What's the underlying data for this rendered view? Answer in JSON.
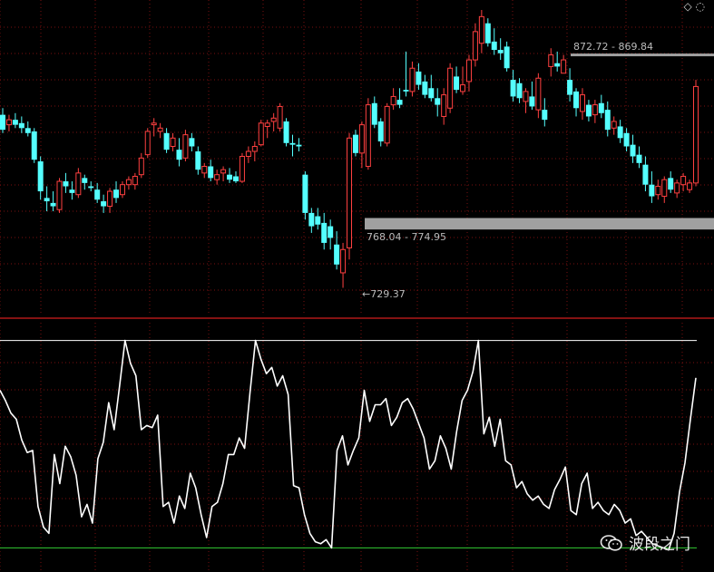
{
  "chart_data": [
    {
      "type": "candlestick",
      "title": "",
      "colors": {
        "up": "#ff4040",
        "down": "#54ffff",
        "background": "#000000",
        "grid": "#7a1010"
      },
      "ylim": [
        718,
        906
      ],
      "annotations": {
        "low_label": "729.37",
        "zone_low_label": "768.04 - 774.95",
        "zone_high_label": "872.72 - 869.84",
        "zone_low": [
          768.04,
          774.95
        ],
        "zone_high": [
          869.84,
          872.72
        ],
        "low_marker": 729.37
      },
      "candles": [
        {
          "o": 837,
          "h": 841,
          "l": 826,
          "c": 828
        },
        {
          "o": 831,
          "h": 837,
          "l": 827,
          "c": 834
        },
        {
          "o": 834,
          "h": 838,
          "l": 829,
          "c": 831
        },
        {
          "o": 832,
          "h": 836,
          "l": 826,
          "c": 829
        },
        {
          "o": 829,
          "h": 833,
          "l": 824,
          "c": 826
        },
        {
          "o": 827,
          "h": 829,
          "l": 808,
          "c": 810
        },
        {
          "o": 809,
          "h": 812,
          "l": 786,
          "c": 791
        },
        {
          "o": 787,
          "h": 794,
          "l": 779,
          "c": 785
        },
        {
          "o": 784,
          "h": 791,
          "l": 779,
          "c": 782
        },
        {
          "o": 780,
          "h": 799,
          "l": 778,
          "c": 797
        },
        {
          "o": 797,
          "h": 802,
          "l": 790,
          "c": 794
        },
        {
          "o": 792,
          "h": 797,
          "l": 786,
          "c": 790
        },
        {
          "o": 789,
          "h": 805,
          "l": 787,
          "c": 802
        },
        {
          "o": 799,
          "h": 801,
          "l": 792,
          "c": 796
        },
        {
          "o": 794,
          "h": 797,
          "l": 791,
          "c": 793
        },
        {
          "o": 792,
          "h": 796,
          "l": 784,
          "c": 786
        },
        {
          "o": 785,
          "h": 789,
          "l": 778,
          "c": 782
        },
        {
          "o": 782,
          "h": 793,
          "l": 778,
          "c": 791
        },
        {
          "o": 792,
          "h": 797,
          "l": 784,
          "c": 787
        },
        {
          "o": 789,
          "h": 797,
          "l": 787,
          "c": 795
        },
        {
          "o": 795,
          "h": 800,
          "l": 792,
          "c": 798
        },
        {
          "o": 795,
          "h": 802,
          "l": 792,
          "c": 800
        },
        {
          "o": 801,
          "h": 814,
          "l": 799,
          "c": 811
        },
        {
          "o": 813,
          "h": 829,
          "l": 811,
          "c": 827
        },
        {
          "o": 831,
          "h": 835,
          "l": 824,
          "c": 832
        },
        {
          "o": 827,
          "h": 832,
          "l": 823,
          "c": 829
        },
        {
          "o": 826,
          "h": 829,
          "l": 814,
          "c": 816
        },
        {
          "o": 818,
          "h": 826,
          "l": 815,
          "c": 823
        },
        {
          "o": 816,
          "h": 823,
          "l": 806,
          "c": 810
        },
        {
          "o": 811,
          "h": 828,
          "l": 809,
          "c": 825
        },
        {
          "o": 823,
          "h": 826,
          "l": 815,
          "c": 818
        },
        {
          "o": 815,
          "h": 818,
          "l": 801,
          "c": 804
        },
        {
          "o": 802,
          "h": 808,
          "l": 799,
          "c": 806
        },
        {
          "o": 806,
          "h": 810,
          "l": 797,
          "c": 799
        },
        {
          "o": 798,
          "h": 804,
          "l": 795,
          "c": 801
        },
        {
          "o": 802,
          "h": 806,
          "l": 797,
          "c": 804
        },
        {
          "o": 801,
          "h": 805,
          "l": 796,
          "c": 798
        },
        {
          "o": 800,
          "h": 803,
          "l": 796,
          "c": 797
        },
        {
          "o": 797,
          "h": 814,
          "l": 796,
          "c": 812
        },
        {
          "o": 812,
          "h": 818,
          "l": 808,
          "c": 815
        },
        {
          "o": 815,
          "h": 821,
          "l": 809,
          "c": 818
        },
        {
          "o": 819,
          "h": 834,
          "l": 818,
          "c": 832
        },
        {
          "o": 830,
          "h": 834,
          "l": 823,
          "c": 832
        },
        {
          "o": 833,
          "h": 838,
          "l": 827,
          "c": 835
        },
        {
          "o": 829,
          "h": 844,
          "l": 827,
          "c": 842
        },
        {
          "o": 833,
          "h": 835,
          "l": 818,
          "c": 820
        },
        {
          "o": 820,
          "h": 825,
          "l": 812,
          "c": 819
        },
        {
          "o": 819,
          "h": 823,
          "l": 815,
          "c": 818
        },
        {
          "o": 801,
          "h": 803,
          "l": 774,
          "c": 778
        },
        {
          "o": 778,
          "h": 781,
          "l": 766,
          "c": 770
        },
        {
          "o": 776,
          "h": 781,
          "l": 768,
          "c": 771
        },
        {
          "o": 772,
          "h": 778,
          "l": 756,
          "c": 760
        },
        {
          "o": 770,
          "h": 774,
          "l": 756,
          "c": 763
        },
        {
          "o": 759,
          "h": 767,
          "l": 744,
          "c": 747
        },
        {
          "o": 742,
          "h": 760,
          "l": 733,
          "c": 756
        },
        {
          "o": 757,
          "h": 826,
          "l": 750,
          "c": 823
        },
        {
          "o": 825,
          "h": 828,
          "l": 812,
          "c": 814
        },
        {
          "o": 814,
          "h": 833,
          "l": 805,
          "c": 831
        },
        {
          "o": 806,
          "h": 847,
          "l": 804,
          "c": 843
        },
        {
          "o": 844,
          "h": 848,
          "l": 829,
          "c": 831
        },
        {
          "o": 833,
          "h": 835,
          "l": 818,
          "c": 821
        },
        {
          "o": 820,
          "h": 844,
          "l": 818,
          "c": 842
        },
        {
          "o": 843,
          "h": 853,
          "l": 840,
          "c": 848
        },
        {
          "o": 846,
          "h": 853,
          "l": 841,
          "c": 843
        },
        {
          "o": 852,
          "h": 875,
          "l": 848,
          "c": 851
        },
        {
          "o": 851,
          "h": 869,
          "l": 848,
          "c": 865
        },
        {
          "o": 863,
          "h": 868,
          "l": 852,
          "c": 855
        },
        {
          "o": 857,
          "h": 861,
          "l": 847,
          "c": 849
        },
        {
          "o": 853,
          "h": 861,
          "l": 845,
          "c": 847
        },
        {
          "o": 847,
          "h": 853,
          "l": 836,
          "c": 843
        },
        {
          "o": 836,
          "h": 853,
          "l": 831,
          "c": 849
        },
        {
          "o": 841,
          "h": 868,
          "l": 838,
          "c": 865
        },
        {
          "o": 860,
          "h": 866,
          "l": 850,
          "c": 852
        },
        {
          "o": 851,
          "h": 866,
          "l": 849,
          "c": 855
        },
        {
          "o": 857,
          "h": 873,
          "l": 851,
          "c": 870
        },
        {
          "o": 870,
          "h": 892,
          "l": 866,
          "c": 887
        },
        {
          "o": 880,
          "h": 900,
          "l": 874,
          "c": 896
        },
        {
          "o": 892,
          "h": 895,
          "l": 878,
          "c": 880
        },
        {
          "o": 881,
          "h": 889,
          "l": 873,
          "c": 876
        },
        {
          "o": 876,
          "h": 883,
          "l": 870,
          "c": 874
        },
        {
          "o": 878,
          "h": 881,
          "l": 863,
          "c": 865
        },
        {
          "o": 858,
          "h": 864,
          "l": 845,
          "c": 848
        },
        {
          "o": 856,
          "h": 859,
          "l": 844,
          "c": 847
        },
        {
          "o": 845,
          "h": 853,
          "l": 838,
          "c": 851
        },
        {
          "o": 848,
          "h": 857,
          "l": 840,
          "c": 842
        },
        {
          "o": 840,
          "h": 862,
          "l": 835,
          "c": 859
        },
        {
          "o": 840,
          "h": 847,
          "l": 830,
          "c": 834
        },
        {
          "o": 866,
          "h": 877,
          "l": 860,
          "c": 873
        },
        {
          "o": 868,
          "h": 875,
          "l": 863,
          "c": 866
        },
        {
          "o": 862,
          "h": 873,
          "l": 862,
          "c": 870
        },
        {
          "o": 858,
          "h": 865,
          "l": 845,
          "c": 849
        },
        {
          "o": 851,
          "h": 853,
          "l": 836,
          "c": 841
        },
        {
          "o": 839,
          "h": 853,
          "l": 834,
          "c": 849
        },
        {
          "o": 843,
          "h": 846,
          "l": 833,
          "c": 836
        },
        {
          "o": 837,
          "h": 846,
          "l": 832,
          "c": 843
        },
        {
          "o": 844,
          "h": 849,
          "l": 835,
          "c": 838
        },
        {
          "o": 840,
          "h": 845,
          "l": 824,
          "c": 828
        },
        {
          "o": 829,
          "h": 836,
          "l": 825,
          "c": 833
        },
        {
          "o": 830,
          "h": 834,
          "l": 820,
          "c": 823
        },
        {
          "o": 826,
          "h": 829,
          "l": 815,
          "c": 818
        },
        {
          "o": 819,
          "h": 825,
          "l": 808,
          "c": 812
        },
        {
          "o": 813,
          "h": 818,
          "l": 805,
          "c": 808
        },
        {
          "o": 807,
          "h": 812,
          "l": 791,
          "c": 795
        },
        {
          "o": 795,
          "h": 803,
          "l": 784,
          "c": 788
        },
        {
          "o": 789,
          "h": 798,
          "l": 786,
          "c": 794
        },
        {
          "o": 788,
          "h": 800,
          "l": 784,
          "c": 798
        },
        {
          "o": 799,
          "h": 803,
          "l": 790,
          "c": 792
        },
        {
          "o": 790,
          "h": 798,
          "l": 787,
          "c": 796
        },
        {
          "o": 795,
          "h": 802,
          "l": 791,
          "c": 800
        },
        {
          "o": 792,
          "h": 798,
          "l": 790,
          "c": 796
        },
        {
          "o": 796,
          "h": 858,
          "l": 794,
          "c": 854
        }
      ]
    },
    {
      "type": "line",
      "title": "",
      "ylim": [
        -2,
        102
      ],
      "reference_lines": [
        100,
        0
      ],
      "colors": {
        "line": "#ffffff",
        "top_line": "#ffffff",
        "bottom_line": "#33cc33"
      },
      "series": [
        {
          "values": [
            76,
            71,
            65,
            62,
            52,
            46,
            47,
            20,
            10,
            7,
            45,
            31,
            49,
            44,
            35,
            15,
            21,
            12,
            43,
            51,
            70,
            57,
            78,
            100,
            89,
            83,
            57,
            59,
            58,
            64,
            20,
            22,
            12,
            25,
            19,
            36,
            29,
            16,
            5,
            20,
            22,
            31,
            45,
            45,
            53,
            48,
            75,
            100,
            91,
            84,
            87,
            78,
            83,
            74,
            30,
            29,
            16,
            7,
            3,
            2,
            4,
            0,
            47,
            54,
            40,
            47,
            53,
            76,
            61,
            69,
            69,
            72,
            59,
            63,
            70,
            72,
            67,
            60,
            53,
            38,
            42,
            54,
            48,
            38,
            56,
            71,
            76,
            85,
            100,
            55,
            63,
            49,
            62,
            42,
            40,
            29,
            32,
            26,
            23,
            25,
            21,
            19,
            28,
            33,
            39,
            18,
            16,
            31,
            36,
            19,
            22,
            18,
            16,
            21,
            18,
            12,
            14,
            6,
            8,
            5,
            2,
            1,
            0,
            -1,
            7,
            27,
            41,
            62,
            82
          ]
        }
      ]
    }
  ],
  "watermark": {
    "text": "波段之门",
    "icon": "wechat-icon"
  },
  "corner_icons": [
    "diamond-icon",
    "circle-icon"
  ]
}
